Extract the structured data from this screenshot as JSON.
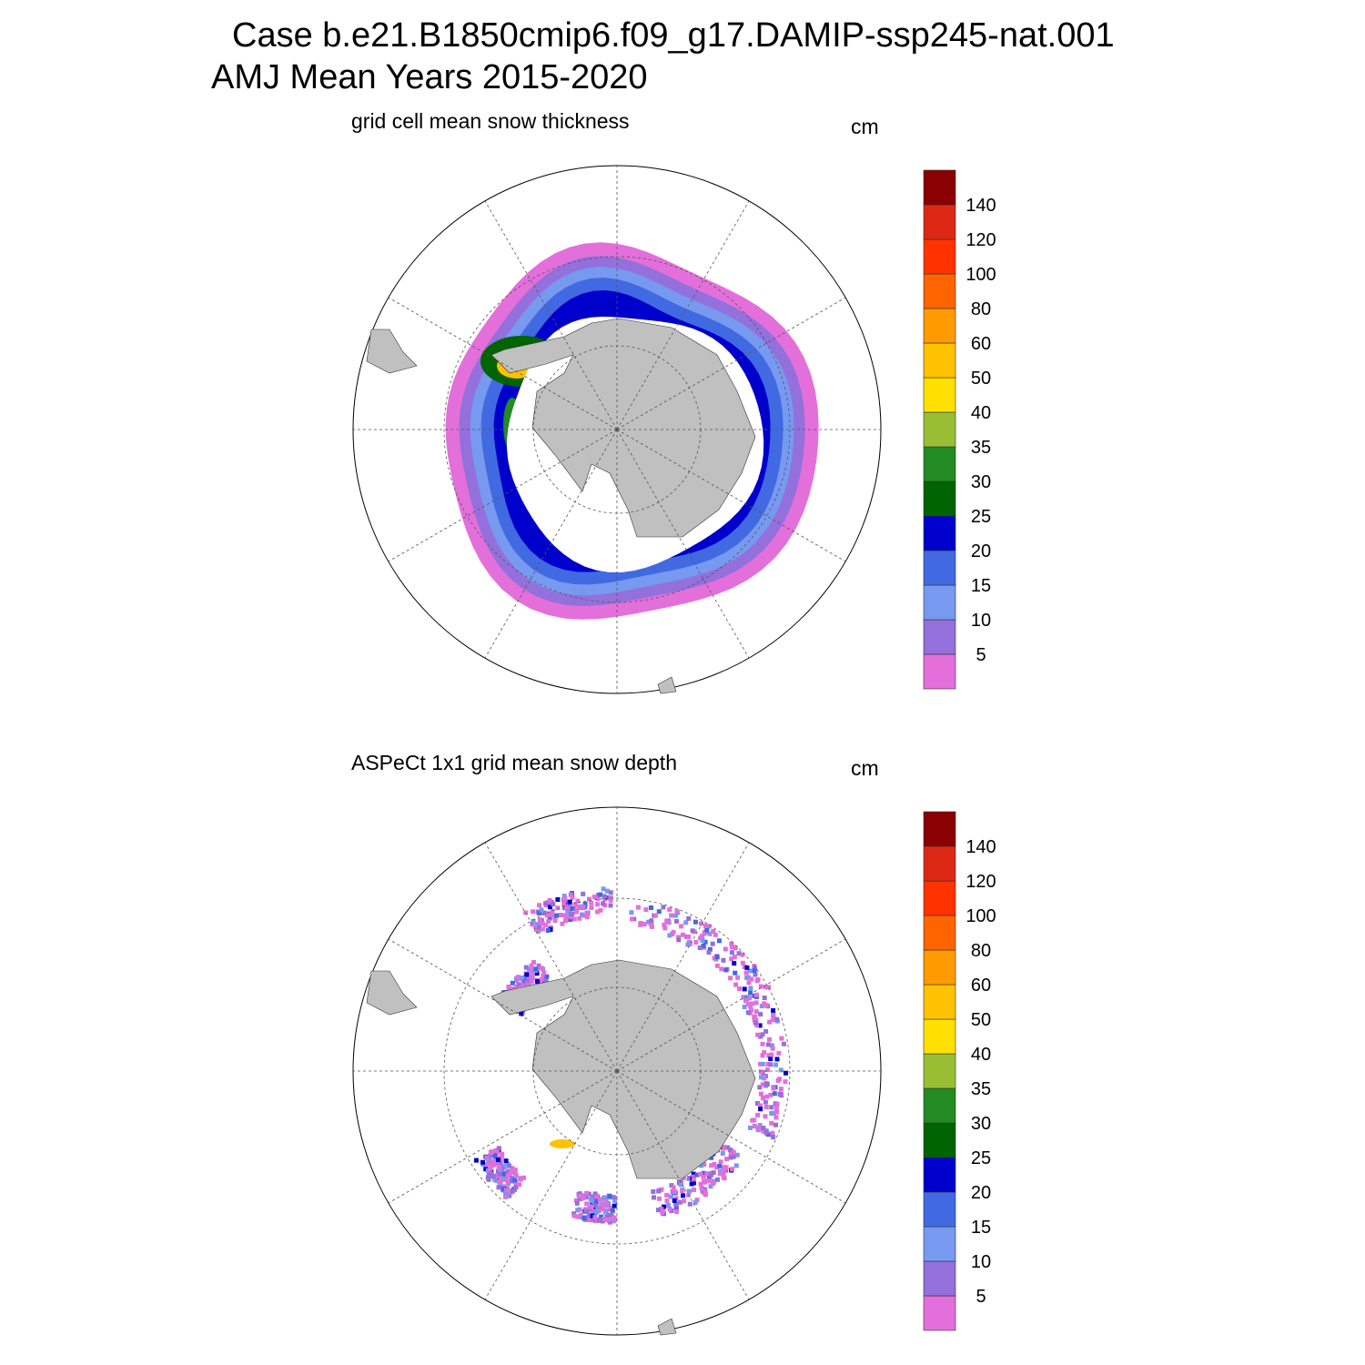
{
  "title": {
    "line1": "Case b.e21.B1850cmip6.f09_g17.DAMIP-ssp245-nat.001",
    "line2": "AMJ Mean   Years 2015-2020"
  },
  "chart_data": [
    {
      "type": "heatmap",
      "projection": "south-polar-stereographic",
      "title": "grid cell mean snow thickness",
      "units": "cm",
      "colorbar": {
        "levels": [
          "5",
          "10",
          "15",
          "20",
          "25",
          "30",
          "35",
          "40",
          "50",
          "60",
          "80",
          "100",
          "120",
          "140"
        ],
        "colors": [
          "#e36fdb",
          "#9370db",
          "#7799f0",
          "#4169e1",
          "#0000cd",
          "#006400",
          "#228b22",
          "#9abe33",
          "#ffe000",
          "#ffc200",
          "#ff9a00",
          "#ff6400",
          "#ff3200",
          "#dc2814",
          "#8b0000"
        ]
      }
    },
    {
      "type": "heatmap",
      "projection": "south-polar-stereographic",
      "title": "ASPeCt 1x1 grid mean snow depth",
      "units": "cm",
      "colorbar": {
        "levels": [
          "5",
          "10",
          "15",
          "20",
          "25",
          "30",
          "35",
          "40",
          "50",
          "60",
          "80",
          "100",
          "120",
          "140"
        ],
        "colors": [
          "#e36fdb",
          "#9370db",
          "#7799f0",
          "#4169e1",
          "#0000cd",
          "#006400",
          "#228b22",
          "#9abe33",
          "#ffe000",
          "#ffc200",
          "#ff9a00",
          "#ff6400",
          "#ff3200",
          "#dc2814",
          "#8b0000"
        ]
      }
    }
  ]
}
